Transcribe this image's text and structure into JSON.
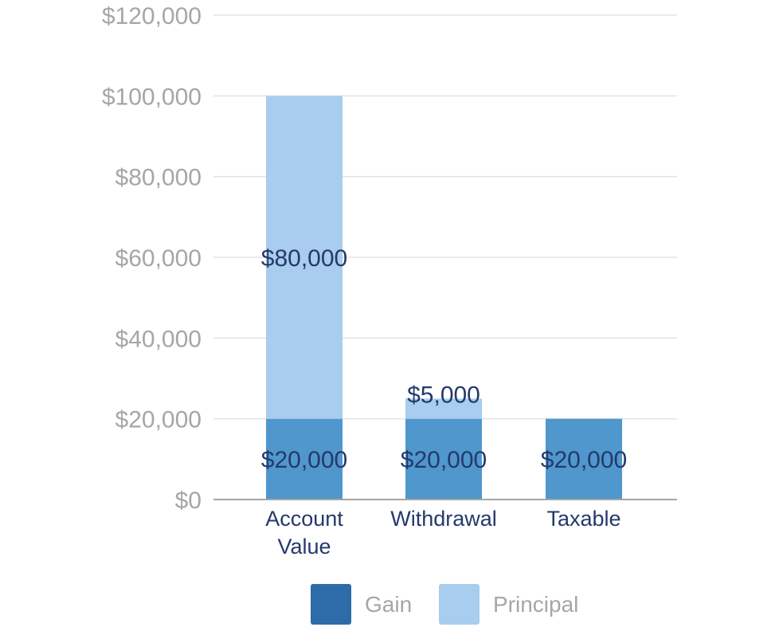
{
  "chart_data": {
    "type": "bar",
    "stacked": true,
    "categories": [
      "Account Value",
      "Withdrawal",
      "Taxable"
    ],
    "category_lines": [
      [
        "Account",
        "Value"
      ],
      [
        "Withdrawal"
      ],
      [
        "Taxable"
      ]
    ],
    "series": [
      {
        "name": "Gain",
        "values": [
          20000,
          20000,
          20000
        ],
        "labels": [
          "$20,000",
          "$20,000",
          "$20,000"
        ],
        "bar_color": "#4f97cc",
        "legend_color": "#2e6ca9"
      },
      {
        "name": "Principal",
        "values": [
          80000,
          5000,
          0
        ],
        "labels": [
          "$80,000",
          "$5,000",
          ""
        ],
        "bar_color": "#a8cdee",
        "legend_color": "#a8cdee"
      }
    ],
    "y_ticks": [
      0,
      20000,
      40000,
      60000,
      80000,
      100000,
      120000
    ],
    "y_tick_labels": [
      "$0",
      "$20,000",
      "$40,000",
      "$60,000",
      "$80,000",
      "$100,000",
      "$120,000"
    ],
    "ylim": [
      0,
      120000
    ],
    "grid": true,
    "legend_position": "bottom",
    "title": "",
    "xlabel": "",
    "ylabel": ""
  },
  "colors": {
    "grid": "#e3e3e3",
    "axis": "#a6a6a6",
    "tick_text": "#a6a6a6",
    "category_text": "#24396b",
    "data_label_text": "#24396b"
  }
}
